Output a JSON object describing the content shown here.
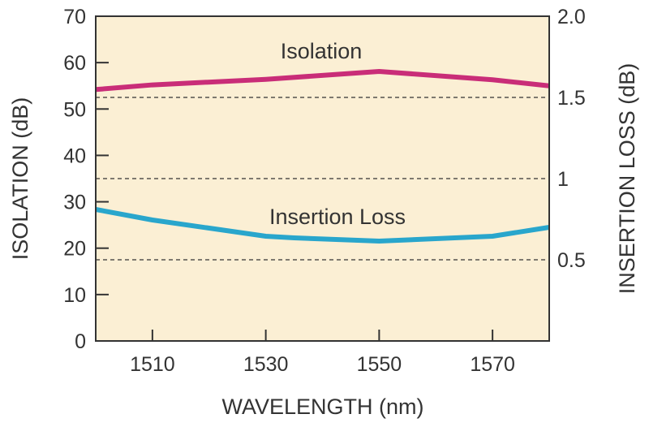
{
  "chart_data": {
    "type": "line",
    "title": "",
    "xlabel": "WAVELENGTH (nm)",
    "ylabel": "ISOLATION (dB)",
    "y2label": "INSERTION LOSS (dB)",
    "xlim": [
      1500,
      1580
    ],
    "ylim": [
      0,
      70
    ],
    "y2lim": [
      0,
      2.0
    ],
    "xticks": [
      "1510",
      "1530",
      "1550",
      "1570"
    ],
    "yticks": [
      "0",
      "10",
      "20",
      "30",
      "40",
      "50",
      "60",
      "70"
    ],
    "y2ticks": [
      "0.5",
      "1",
      "1.5",
      "2.0"
    ],
    "grid": "dashed horizontal lines at right-axis 0.5, 1, 1.5",
    "series": [
      {
        "name": "Isolation",
        "axis": "left",
        "color": "#c92d78",
        "x": [
          1500,
          1510,
          1530,
          1550,
          1570,
          1580
        ],
        "y": [
          54.2,
          55.2,
          56.4,
          58.1,
          56.3,
          55.0
        ]
      },
      {
        "name": "Insertion Loss",
        "axis": "right",
        "color": "#29a6cc",
        "x": [
          1500,
          1510,
          1530,
          1535,
          1550,
          1570,
          1580
        ],
        "y": [
          0.81,
          0.745,
          0.645,
          0.635,
          0.615,
          0.645,
          0.7
        ]
      }
    ],
    "colors": {
      "background": "#fbefd4",
      "axis": "#333333"
    }
  }
}
